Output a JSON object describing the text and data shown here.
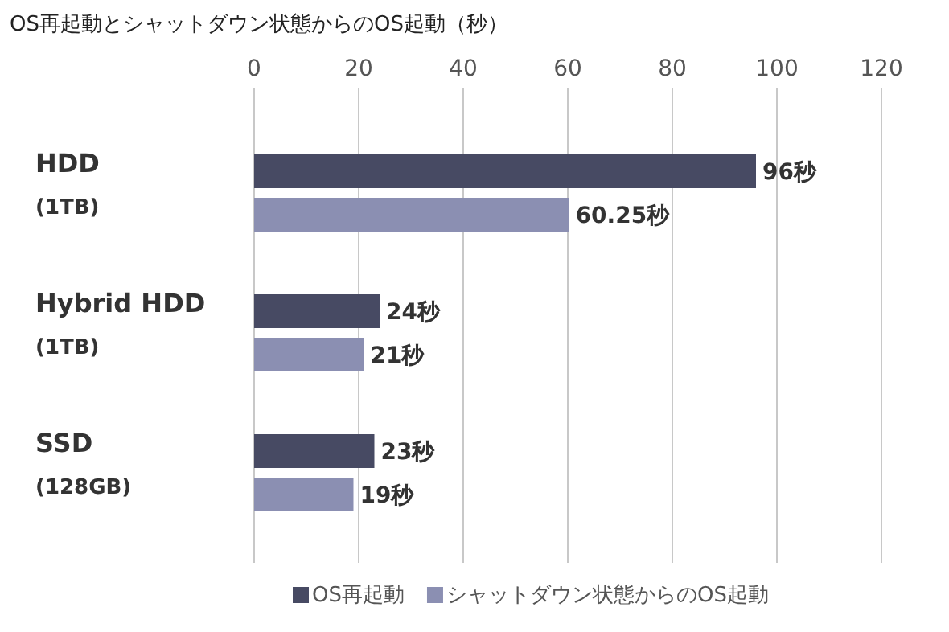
{
  "chart_data": {
    "type": "bar",
    "orientation": "horizontal",
    "title": "OS再起動とシャットダウン状態からのOS起動（秒）",
    "categories": [
      "HDD\n(1TB)",
      "Hybrid HDD\n(1TB)",
      "SSD\n(128GB)"
    ],
    "series": [
      {
        "name": "OS再起動",
        "color": "#474a63",
        "values": [
          96,
          24,
          23
        ],
        "value_labels": [
          "96秒",
          "24秒",
          "23秒"
        ]
      },
      {
        "name": "シャットダウン状態からのOS起動",
        "color": "#8b8fb2",
        "values": [
          60.25,
          21,
          19
        ],
        "value_labels": [
          "60.25秒",
          "21秒",
          "19秒"
        ]
      }
    ],
    "xlim": [
      0,
      120
    ],
    "xticks": [
      0,
      20,
      40,
      60,
      80,
      100,
      120
    ],
    "grid": "x",
    "legend": "bottom"
  }
}
